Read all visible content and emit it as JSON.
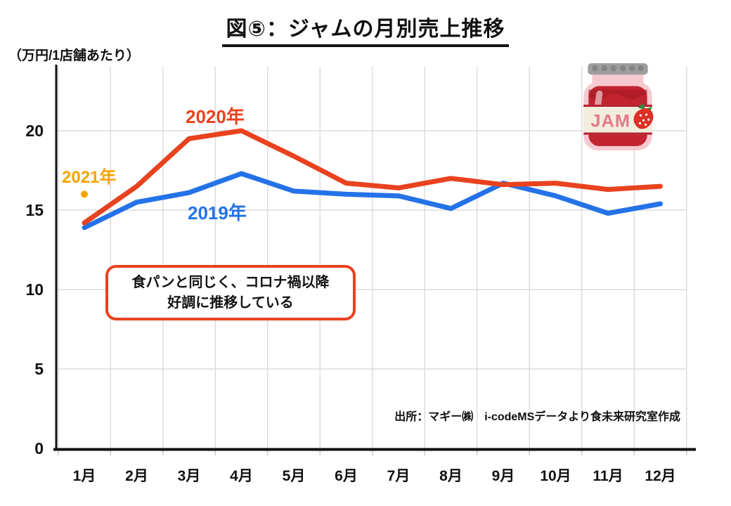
{
  "title": "図⑤：ジャムの月別売上推移",
  "y_axis_unit": "（万円/1店舗あたり）",
  "source": "出所：マギー㈱　i-codeMSデータより食未来研究室作成",
  "annotation": {
    "line1": "食パンと同じく、コロナ禍以降",
    "line2": "好調に推移している"
  },
  "jar_label": "JAM",
  "colors": {
    "red_2020": "#E8421E",
    "blue_2019": "#2472E8",
    "orange_2021": "#F5A400",
    "grid": "#DBDBDB",
    "axis": "#111111",
    "callout_border": "#E8431F"
  },
  "chart_data": {
    "type": "line",
    "title": "図⑤：ジャムの月別売上推移",
    "ylabel": "（万円/1店舗あたり）",
    "categories": [
      "1月",
      "2月",
      "3月",
      "4月",
      "5月",
      "6月",
      "7月",
      "8月",
      "9月",
      "10月",
      "11月",
      "12月"
    ],
    "y_ticks": [
      0,
      5,
      10,
      15,
      20
    ],
    "ylim": [
      0,
      24
    ],
    "grid": true,
    "legend_position": "inline-labels-on-chart",
    "series": [
      {
        "name": "2019年",
        "color": "#2472E8",
        "values": [
          13.9,
          15.5,
          16.1,
          17.3,
          16.2,
          16.0,
          15.9,
          15.1,
          16.7,
          15.9,
          14.8,
          15.4
        ]
      },
      {
        "name": "2020年",
        "color": "#E8421E",
        "values": [
          14.2,
          16.5,
          19.5,
          20.0,
          18.4,
          16.7,
          16.4,
          17.0,
          16.6,
          16.7,
          16.3,
          16.5
        ]
      },
      {
        "name": "2021年",
        "color": "#F5A400",
        "point_only": true,
        "values": [
          16.0
        ]
      }
    ]
  }
}
